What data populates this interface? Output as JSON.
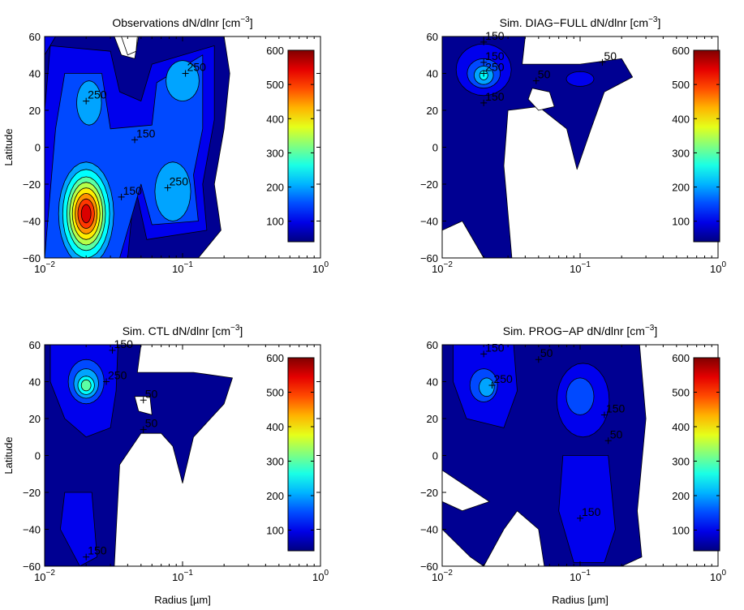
{
  "figure": {
    "panels": [
      "p1",
      "p2",
      "p3",
      "p4"
    ]
  },
  "chart_data": [
    {
      "id": "p1",
      "type": "contour",
      "title_main": "Observations dN/dlnr [cm",
      "title_sup": "−3",
      "title_end": "]",
      "xlabel": "",
      "ylabel": "Latitude",
      "xscale": "log",
      "xlim": [
        0.01,
        1
      ],
      "ylim": [
        -60,
        60
      ],
      "xticks": [
        {
          "base": "10",
          "exp": "−2"
        },
        {
          "base": "10",
          "exp": "−1"
        },
        {
          "base": "10",
          "exp": "0"
        }
      ],
      "yticks": [
        "60",
        "40",
        "20",
        "0",
        "−20",
        "−40",
        "−60"
      ],
      "colorbar": {
        "range": [
          40,
          600
        ],
        "ticks": [
          "600",
          "500",
          "400",
          "300",
          "200",
          "100"
        ]
      },
      "contour_labels": [
        {
          "text": "250",
          "x": 0.02,
          "y": 25
        },
        {
          "text": "250",
          "x": 0.105,
          "y": 40
        },
        {
          "text": "150",
          "x": 0.045,
          "y": 4
        },
        {
          "text": "250",
          "x": 0.078,
          "y": -22
        },
        {
          "text": "150",
          "x": 0.036,
          "y": -27
        }
      ]
    },
    {
      "id": "p2",
      "type": "contour",
      "title_main": "Sim. DIAG−FULL dN/dlnr [cm",
      "title_sup": "−3",
      "title_end": "]",
      "xlabel": "",
      "ylabel": "",
      "xscale": "log",
      "xlim": [
        0.01,
        1
      ],
      "ylim": [
        -60,
        60
      ],
      "xticks": [
        {
          "base": "10",
          "exp": "−2"
        },
        {
          "base": "10",
          "exp": "−1"
        },
        {
          "base": "10",
          "exp": "0"
        }
      ],
      "yticks": [
        "60",
        "40",
        "20",
        "0",
        "−20",
        "−40",
        "−60"
      ],
      "colorbar": {
        "range": [
          40,
          600
        ],
        "ticks": [
          "600",
          "500",
          "400",
          "300",
          "200",
          "100"
        ]
      },
      "contour_labels": [
        {
          "text": "150",
          "x": 0.02,
          "y": 57
        },
        {
          "text": "150",
          "x": 0.02,
          "y": 46
        },
        {
          "text": "250",
          "x": 0.02,
          "y": 40
        },
        {
          "text": "50",
          "x": 0.048,
          "y": 36
        },
        {
          "text": "150",
          "x": 0.02,
          "y": 24
        },
        {
          "text": "50",
          "x": 0.145,
          "y": 46
        }
      ]
    },
    {
      "id": "p3",
      "type": "contour",
      "title_main": "Sim. CTL dN/dlnr [cm",
      "title_sup": "−3",
      "title_end": "]",
      "xlabel": "Radius [µm]",
      "ylabel": "Latitude",
      "xscale": "log",
      "xlim": [
        0.01,
        1
      ],
      "ylim": [
        -60,
        60
      ],
      "xticks": [
        {
          "base": "10",
          "exp": "−2"
        },
        {
          "base": "10",
          "exp": "−1"
        },
        {
          "base": "10",
          "exp": "0"
        }
      ],
      "yticks": [
        "60",
        "40",
        "20",
        "0",
        "−20",
        "−40",
        "−60"
      ],
      "colorbar": {
        "range": [
          40,
          600
        ],
        "ticks": [
          "600",
          "500",
          "400",
          "300",
          "200",
          "100"
        ]
      },
      "contour_labels": [
        {
          "text": "150",
          "x": 0.031,
          "y": 57
        },
        {
          "text": "250",
          "x": 0.028,
          "y": 40
        },
        {
          "text": "50",
          "x": 0.052,
          "y": 30
        },
        {
          "text": "50",
          "x": 0.052,
          "y": 14
        },
        {
          "text": "150",
          "x": 0.02,
          "y": -55
        }
      ]
    },
    {
      "id": "p4",
      "type": "contour",
      "title_main": "Sim. PROG−AP dN/dlnr [cm",
      "title_sup": "−3",
      "title_end": "]",
      "xlabel": "Radius [µm]",
      "ylabel": "",
      "xscale": "log",
      "xlim": [
        0.01,
        1
      ],
      "ylim": [
        -60,
        60
      ],
      "xticks": [
        {
          "base": "10",
          "exp": "−2"
        },
        {
          "base": "10",
          "exp": "−1"
        },
        {
          "base": "10",
          "exp": "0"
        }
      ],
      "yticks": [
        "60",
        "40",
        "20",
        "0",
        "−20",
        "−40",
        "−60"
      ],
      "colorbar": {
        "range": [
          40,
          600
        ],
        "ticks": [
          "600",
          "500",
          "400",
          "300",
          "200",
          "100"
        ]
      },
      "contour_labels": [
        {
          "text": "150",
          "x": 0.02,
          "y": 55
        },
        {
          "text": "50",
          "x": 0.05,
          "y": 52
        },
        {
          "text": "250",
          "x": 0.023,
          "y": 38
        },
        {
          "text": "150",
          "x": 0.15,
          "y": 22
        },
        {
          "text": "50",
          "x": 0.16,
          "y": 8
        },
        {
          "text": "150",
          "x": 0.1,
          "y": -34
        }
      ]
    }
  ]
}
